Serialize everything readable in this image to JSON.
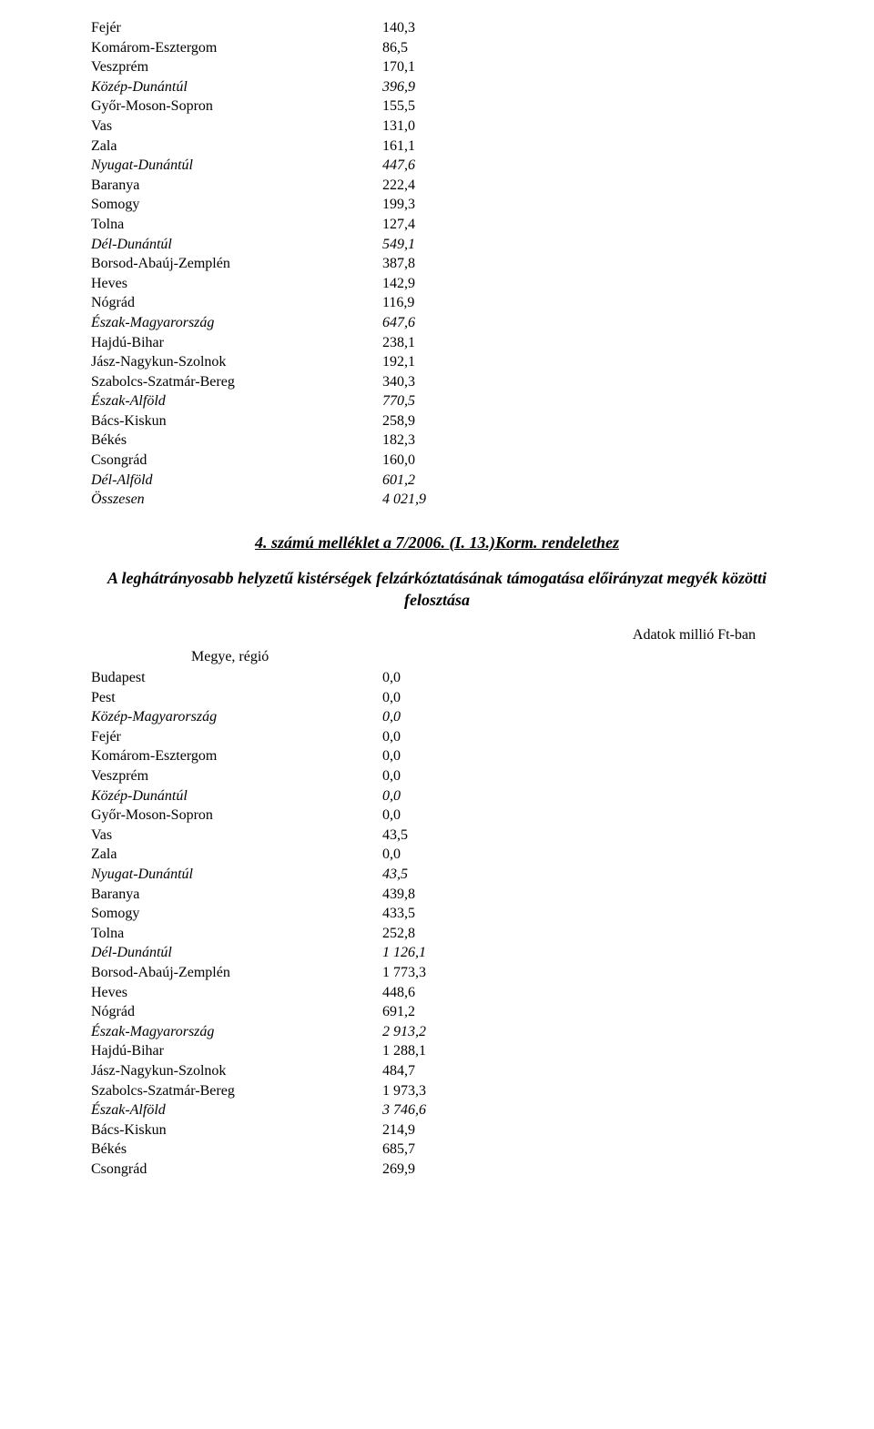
{
  "table1_rows": [
    {
      "label": "Fejér",
      "value": "140,3",
      "italic": false
    },
    {
      "label": "Komárom-Esztergom",
      "value": "86,5",
      "italic": false
    },
    {
      "label": "Veszprém",
      "value": "170,1",
      "italic": false
    },
    {
      "label": "Közép-Dunántúl",
      "value": "396,9",
      "italic": true
    },
    {
      "label": "Győr-Moson-Sopron",
      "value": "155,5",
      "italic": false
    },
    {
      "label": "Vas",
      "value": "131,0",
      "italic": false
    },
    {
      "label": "Zala",
      "value": "161,1",
      "italic": false
    },
    {
      "label": "Nyugat-Dunántúl",
      "value": "447,6",
      "italic": true
    },
    {
      "label": "Baranya",
      "value": "222,4",
      "italic": false
    },
    {
      "label": "Somogy",
      "value": "199,3",
      "italic": false
    },
    {
      "label": "Tolna",
      "value": "127,4",
      "italic": false
    },
    {
      "label": "Dél-Dunántúl",
      "value": "549,1",
      "italic": true
    },
    {
      "label": "Borsod-Abaúj-Zemplén",
      "value": "387,8",
      "italic": false
    },
    {
      "label": "Heves",
      "value": "142,9",
      "italic": false
    },
    {
      "label": "Nógrád",
      "value": "116,9",
      "italic": false
    },
    {
      "label": "Észak-Magyarország",
      "value": "647,6",
      "italic": true
    },
    {
      "label": "Hajdú-Bihar",
      "value": "238,1",
      "italic": false
    },
    {
      "label": "Jász-Nagykun-Szolnok",
      "value": "192,1",
      "italic": false
    },
    {
      "label": "Szabolcs-Szatmár-Bereg",
      "value": "340,3",
      "italic": false
    },
    {
      "label": "Észak-Alföld",
      "value": "770,5",
      "italic": true
    },
    {
      "label": "Bács-Kiskun",
      "value": "258,9",
      "italic": false
    },
    {
      "label": "Békés",
      "value": "182,3",
      "italic": false
    },
    {
      "label": "Csongrád",
      "value": "160,0",
      "italic": false
    },
    {
      "label": "Dél-Alföld",
      "value": "601,2",
      "italic": true
    },
    {
      "label": "Összesen",
      "value": "4 021,9",
      "italic": true
    }
  ],
  "section_title": "4. számú melléklet a 7/2006. (I. 13.)Korm. rendelethez",
  "subtitle": "A leghátrányosabb helyzetű kistérségek felzárkóztatásának támogatása előirányzat megyék közötti felosztása",
  "unit_note": "Adatok millió Ft-ban",
  "col_header": "Megye, régió",
  "table2_rows": [
    {
      "label": "Budapest",
      "value": "0,0",
      "italic": false
    },
    {
      "label": "Pest",
      "value": "0,0",
      "italic": false
    },
    {
      "label": "Közép-Magyarország",
      "value": "0,0",
      "italic": true
    },
    {
      "label": "Fejér",
      "value": "0,0",
      "italic": false
    },
    {
      "label": "Komárom-Esztergom",
      "value": "0,0",
      "italic": false
    },
    {
      "label": "Veszprém",
      "value": "0,0",
      "italic": false
    },
    {
      "label": "Közép-Dunántúl",
      "value": "0,0",
      "italic": true
    },
    {
      "label": "Győr-Moson-Sopron",
      "value": "0,0",
      "italic": false
    },
    {
      "label": "Vas",
      "value": "43,5",
      "italic": false
    },
    {
      "label": "Zala",
      "value": "0,0",
      "italic": false
    },
    {
      "label": "Nyugat-Dunántúl",
      "value": "43,5",
      "italic": true
    },
    {
      "label": "Baranya",
      "value": "439,8",
      "italic": false
    },
    {
      "label": "Somogy",
      "value": "433,5",
      "italic": false
    },
    {
      "label": "Tolna",
      "value": "252,8",
      "italic": false
    },
    {
      "label": "Dél-Dunántúl",
      "value": "1 126,1",
      "italic": true
    },
    {
      "label": "Borsod-Abaúj-Zemplén",
      "value": "1 773,3",
      "italic": false
    },
    {
      "label": "Heves",
      "value": "448,6",
      "italic": false
    },
    {
      "label": "Nógrád",
      "value": "691,2",
      "italic": false
    },
    {
      "label": "Észak-Magyarország",
      "value": "2 913,2",
      "italic": true
    },
    {
      "label": "Hajdú-Bihar",
      "value": "1 288,1",
      "italic": false
    },
    {
      "label": "Jász-Nagykun-Szolnok",
      "value": "484,7",
      "italic": false
    },
    {
      "label": "Szabolcs-Szatmár-Bereg",
      "value": "1 973,3",
      "italic": false
    },
    {
      "label": "Észak-Alföld",
      "value": "3 746,6",
      "italic": true
    },
    {
      "label": "Bács-Kiskun",
      "value": "214,9",
      "italic": false
    },
    {
      "label": "Békés",
      "value": "685,7",
      "italic": false
    },
    {
      "label": "Csongrád",
      "value": "269,9",
      "italic": false
    }
  ]
}
